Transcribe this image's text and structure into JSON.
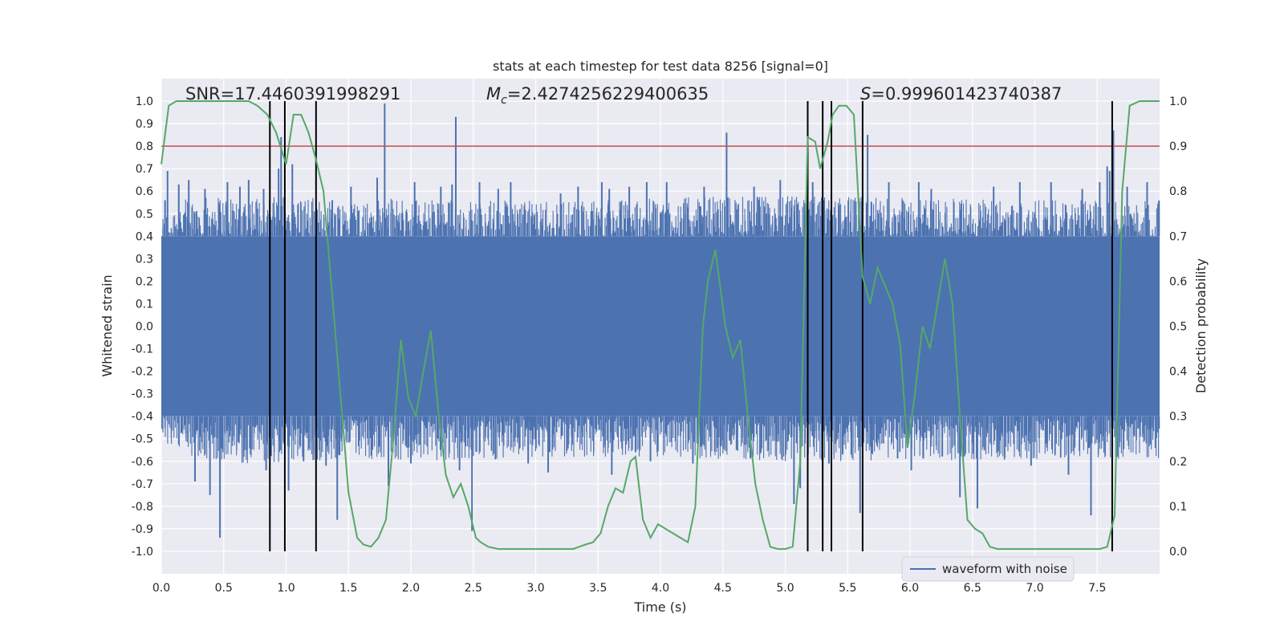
{
  "chart_data": {
    "type": "line",
    "title": "stats at each timestep for test data 8256 [signal=0]",
    "xlabel": "Time (s)",
    "ylabel_left": "Whitened strain",
    "ylabel_right": "Detection probability",
    "xlim": [
      0,
      8
    ],
    "ylim_left": [
      -1.1,
      1.1
    ],
    "ylim_right": [
      -0.05,
      1.05
    ],
    "x_ticks": [
      "0.0",
      "0.5",
      "1.0",
      "1.5",
      "2.0",
      "2.5",
      "3.0",
      "3.5",
      "4.0",
      "4.5",
      "5.0",
      "5.5",
      "6.0",
      "6.5",
      "7.0",
      "7.5"
    ],
    "y_ticks_left": [
      "1.0",
      "0.9",
      "0.8",
      "0.7",
      "0.6",
      "0.5",
      "0.4",
      "0.3",
      "0.2",
      "0.1",
      "0.0",
      "-0.1",
      "-0.2",
      "-0.3",
      "-0.4",
      "-0.5",
      "-0.6",
      "-0.7",
      "-0.8",
      "-0.9",
      "-1.0"
    ],
    "y_ticks_right": [
      "1.0",
      "0.9",
      "0.8",
      "0.7",
      "0.6",
      "0.5",
      "0.4",
      "0.3",
      "0.2",
      "0.1",
      "0.0"
    ],
    "annotations": {
      "snr": "SNR=17.4460391998291",
      "mc_symbol": "M",
      "mc_sub": "c",
      "mc_value": "=2.4274256229400635",
      "s_symbol": "S",
      "s_value": "=0.999601423740387"
    },
    "threshold": {
      "axis": "right",
      "value": 0.9,
      "color": "#c44e52"
    },
    "event_lines": [
      0.87,
      0.99,
      1.24,
      5.18,
      5.3,
      5.37,
      5.62,
      7.62
    ],
    "legend": {
      "label": "waveform with noise",
      "position": "lower-right"
    },
    "series": [
      {
        "name": "waveform with noise",
        "axis": "left",
        "color": "#4c72b0",
        "kind": "noise",
        "core_range": [
          -0.4,
          0.4
        ],
        "envelope": [
          [
            0.0,
            0.33,
            -0.36
          ],
          [
            0.13,
            0.4,
            -0.4
          ],
          [
            0.5,
            0.42,
            -0.45
          ],
          [
            1.0,
            0.42,
            -0.45
          ],
          [
            1.5,
            0.4,
            -0.43
          ],
          [
            2.0,
            0.41,
            -0.44
          ],
          [
            2.5,
            0.4,
            -0.44
          ],
          [
            3.0,
            0.4,
            -0.42
          ],
          [
            3.5,
            0.4,
            -0.43
          ],
          [
            4.0,
            0.41,
            -0.42
          ],
          [
            4.5,
            0.42,
            -0.43
          ],
          [
            5.0,
            0.42,
            -0.44
          ],
          [
            5.5,
            0.42,
            -0.44
          ],
          [
            6.0,
            0.41,
            -0.43
          ],
          [
            6.5,
            0.41,
            -0.44
          ],
          [
            7.0,
            0.4,
            -0.43
          ],
          [
            7.5,
            0.4,
            -0.43
          ],
          [
            8.0,
            0.4,
            -0.44
          ]
        ],
        "spikes": [
          [
            0.03,
            0.56
          ],
          [
            0.05,
            0.69
          ],
          [
            0.14,
            0.63
          ],
          [
            0.22,
            0.65
          ],
          [
            0.27,
            -0.69
          ],
          [
            0.35,
            0.61
          ],
          [
            0.39,
            -0.75
          ],
          [
            0.46,
            0.55
          ],
          [
            0.47,
            -0.94
          ],
          [
            0.53,
            0.64
          ],
          [
            0.63,
            0.62
          ],
          [
            0.7,
            0.65
          ],
          [
            0.82,
            0.61
          ],
          [
            0.84,
            -0.64
          ],
          [
            0.94,
            0.7
          ],
          [
            0.96,
            0.84
          ],
          [
            1.02,
            -0.73
          ],
          [
            1.05,
            0.72
          ],
          [
            1.14,
            -0.6
          ],
          [
            1.32,
            -0.62
          ],
          [
            1.37,
            0.56
          ],
          [
            1.41,
            -0.86
          ],
          [
            1.52,
            0.62
          ],
          [
            1.73,
            0.66
          ],
          [
            1.79,
            0.99
          ],
          [
            1.82,
            -0.71
          ],
          [
            2.0,
            -0.61
          ],
          [
            2.03,
            0.64
          ],
          [
            2.24,
            0.62
          ],
          [
            2.33,
            0.63
          ],
          [
            2.36,
            0.93
          ],
          [
            2.39,
            -0.64
          ],
          [
            2.49,
            -0.91
          ],
          [
            2.55,
            0.64
          ],
          [
            2.7,
            0.61
          ],
          [
            2.8,
            0.64
          ],
          [
            2.94,
            -0.61
          ],
          [
            3.1,
            -0.65
          ],
          [
            3.2,
            0.59
          ],
          [
            3.34,
            0.62
          ],
          [
            3.53,
            0.64
          ],
          [
            3.59,
            0.61
          ],
          [
            3.61,
            -0.66
          ],
          [
            3.75,
            0.62
          ],
          [
            3.8,
            -0.56
          ],
          [
            3.89,
            0.64
          ],
          [
            3.92,
            -0.6
          ],
          [
            4.05,
            0.64
          ],
          [
            4.26,
            -0.61
          ],
          [
            4.35,
            0.62
          ],
          [
            4.48,
            -0.53
          ],
          [
            4.53,
            0.86
          ],
          [
            4.61,
            -0.55
          ],
          [
            4.75,
            0.62
          ],
          [
            4.96,
            0.65
          ],
          [
            5.07,
            -0.79
          ],
          [
            5.12,
            -0.72
          ],
          [
            5.22,
            0.64
          ],
          [
            5.35,
            -0.61
          ],
          [
            5.37,
            0.62
          ],
          [
            5.46,
            -0.57
          ],
          [
            5.6,
            -0.83
          ],
          [
            5.66,
            0.85
          ],
          [
            5.83,
            0.64
          ],
          [
            6.01,
            -0.64
          ],
          [
            6.07,
            0.64
          ],
          [
            6.17,
            0.61
          ],
          [
            6.4,
            -0.76
          ],
          [
            6.54,
            -0.81
          ],
          [
            6.67,
            0.62
          ],
          [
            6.88,
            0.64
          ],
          [
            6.97,
            -0.62
          ],
          [
            7.13,
            0.64
          ],
          [
            7.27,
            -0.66
          ],
          [
            7.38,
            0.61
          ],
          [
            7.45,
            -0.84
          ],
          [
            7.52,
            0.64
          ],
          [
            7.58,
            0.71
          ],
          [
            7.6,
            0.69
          ],
          [
            7.63,
            0.87
          ],
          [
            7.66,
            -0.58
          ],
          [
            7.74,
            0.62
          ],
          [
            7.9,
            0.64
          ]
        ]
      },
      {
        "name": "detection probability",
        "axis": "right",
        "color": "#55a868",
        "x": [
          0,
          0.06,
          0.12,
          0.2,
          0.3,
          0.4,
          0.5,
          0.6,
          0.7,
          0.77,
          0.85,
          0.92,
          1.0,
          1.06,
          1.12,
          1.18,
          1.24,
          1.3,
          1.36,
          1.42,
          1.5,
          1.57,
          1.62,
          1.68,
          1.74,
          1.8,
          1.86,
          1.92,
          1.98,
          2.04,
          2.1,
          2.16,
          2.22,
          2.28,
          2.34,
          2.4,
          2.46,
          2.52,
          2.56,
          2.62,
          2.7,
          2.8,
          2.9,
          3.0,
          3.1,
          3.2,
          3.3,
          3.35,
          3.4,
          3.46,
          3.52,
          3.58,
          3.64,
          3.7,
          3.76,
          3.8,
          3.86,
          3.92,
          3.98,
          4.04,
          4.1,
          4.16,
          4.22,
          4.28,
          4.34,
          4.38,
          4.44,
          4.52,
          4.58,
          4.64,
          4.7,
          4.76,
          4.82,
          4.88,
          4.94,
          5.0,
          5.06,
          5.12,
          5.18,
          5.24,
          5.28,
          5.34,
          5.38,
          5.43,
          5.49,
          5.55,
          5.62,
          5.68,
          5.74,
          5.8,
          5.86,
          5.92,
          5.98,
          6.04,
          6.1,
          6.16,
          6.22,
          6.28,
          6.34,
          6.4,
          6.46,
          6.52,
          6.58,
          6.64,
          6.7,
          6.76,
          6.86,
          6.96,
          7.06,
          7.16,
          7.26,
          7.36,
          7.46,
          7.52,
          7.58,
          7.64,
          7.7,
          7.76,
          7.84,
          7.92,
          8.0
        ],
        "y": [
          0.86,
          0.99,
          1.0,
          1.0,
          1.0,
          1.0,
          1.0,
          1.0,
          1.0,
          0.99,
          0.97,
          0.93,
          0.86,
          0.97,
          0.97,
          0.93,
          0.87,
          0.8,
          0.6,
          0.4,
          0.13,
          0.03,
          0.015,
          0.01,
          0.03,
          0.07,
          0.25,
          0.47,
          0.34,
          0.3,
          0.4,
          0.49,
          0.31,
          0.17,
          0.12,
          0.15,
          0.1,
          0.03,
          0.02,
          0.01,
          0.005,
          0.005,
          0.005,
          0.005,
          0.005,
          0.005,
          0.005,
          0.01,
          0.015,
          0.02,
          0.04,
          0.1,
          0.14,
          0.13,
          0.2,
          0.21,
          0.07,
          0.03,
          0.06,
          0.05,
          0.04,
          0.03,
          0.02,
          0.1,
          0.5,
          0.6,
          0.67,
          0.5,
          0.43,
          0.47,
          0.3,
          0.15,
          0.07,
          0.01,
          0.005,
          0.005,
          0.01,
          0.2,
          0.92,
          0.91,
          0.85,
          0.91,
          0.97,
          0.99,
          0.99,
          0.97,
          0.61,
          0.55,
          0.63,
          0.59,
          0.55,
          0.46,
          0.23,
          0.35,
          0.5,
          0.45,
          0.55,
          0.65,
          0.55,
          0.3,
          0.07,
          0.05,
          0.04,
          0.01,
          0.005,
          0.005,
          0.005,
          0.005,
          0.005,
          0.005,
          0.005,
          0.005,
          0.005,
          0.005,
          0.01,
          0.08,
          0.8,
          0.99,
          1.0,
          1.0,
          1.0
        ]
      }
    ]
  }
}
